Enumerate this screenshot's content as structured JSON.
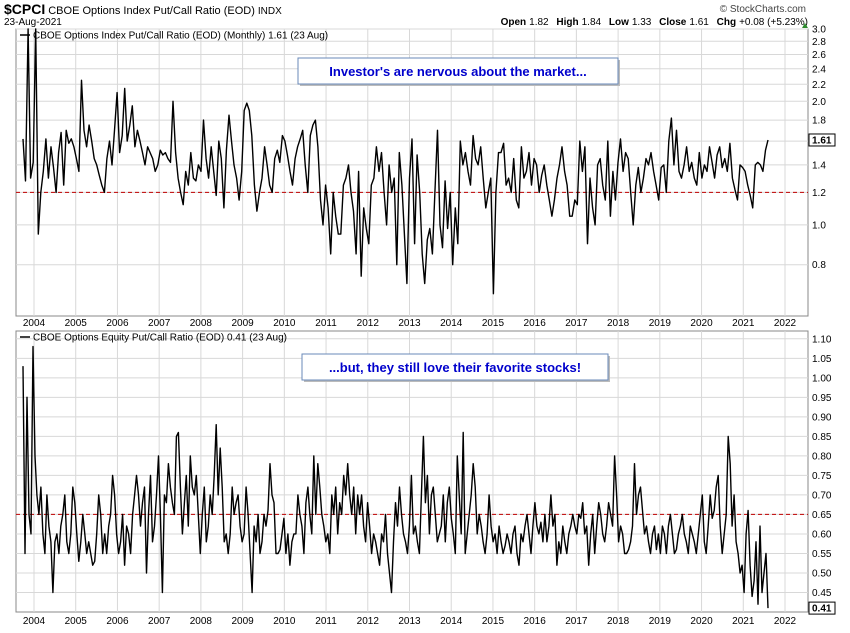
{
  "header": {
    "symbol": "$CPCI",
    "description": "CBOE Options Index Put/Call Ratio (EOD)",
    "exchange": "INDX",
    "date": "23-Aug-2021",
    "brand": "© StockCharts.com",
    "open_label": "Open",
    "open": "1.82",
    "high_label": "High",
    "high": "1.84",
    "low_label": "Low",
    "low": "1.33",
    "close_label": "Close",
    "close": "1.61",
    "chg_label": "Chg",
    "chg": "+0.08 (+5.23%)",
    "up_arrow_color": "#2e8b2e"
  },
  "chart_data": [
    {
      "type": "line",
      "title": "CBOE Options Index Put/Call Ratio (EOD) (Monthly) 1.61 (23 Aug)",
      "annotation": "Investor's are nervous about the market...",
      "scale": "log",
      "ylim": [
        0.6,
        3.0
      ],
      "y_ticks": [
        0.8,
        1.0,
        1.2,
        1.4,
        1.6,
        1.8,
        2.0,
        2.2,
        2.4,
        2.6,
        2.8,
        3.0
      ],
      "reference_line": 1.2,
      "last_value_label": "1.61",
      "x_ticks": [
        "2004",
        "2005",
        "2006",
        "2007",
        "2008",
        "2009",
        "2010",
        "2011",
        "2012",
        "2013",
        "2014",
        "2015",
        "2016",
        "2017",
        "2018",
        "2019",
        "2020",
        "2021",
        "2022"
      ],
      "series": [
        {
          "values": [
            1.62,
            1.28,
            3.0,
            1.3,
            1.42,
            3.0,
            0.95,
            1.2,
            1.35,
            1.62,
            1.3,
            1.55,
            1.38,
            1.2,
            1.5,
            1.68,
            1.25,
            1.7,
            1.58,
            1.62,
            1.55,
            1.45,
            1.35,
            2.25,
            1.7,
            1.55,
            1.75,
            1.6,
            1.45,
            1.4,
            1.32,
            1.25,
            1.2,
            1.45,
            1.6,
            1.4,
            1.7,
            2.1,
            1.5,
            1.65,
            2.15,
            1.6,
            1.75,
            1.95,
            1.55,
            1.7,
            1.6,
            1.5,
            1.4,
            1.55,
            1.5,
            1.45,
            1.35,
            1.4,
            1.52,
            1.48,
            1.5,
            1.45,
            1.42,
            2.0,
            1.5,
            1.3,
            1.2,
            1.12,
            1.35,
            1.25,
            1.5,
            1.3,
            1.28,
            1.4,
            1.35,
            1.8,
            1.45,
            1.3,
            1.55,
            1.35,
            1.18,
            1.6,
            1.45,
            1.1,
            1.52,
            1.85,
            1.6,
            1.4,
            1.3,
            1.15,
            1.35,
            1.9,
            1.98,
            1.9,
            1.65,
            1.25,
            1.08,
            1.2,
            1.3,
            1.55,
            1.4,
            1.25,
            1.2,
            1.45,
            1.52,
            1.42,
            1.65,
            1.6,
            1.48,
            1.35,
            1.25,
            1.45,
            1.55,
            1.62,
            1.7,
            1.4,
            1.2,
            1.65,
            1.75,
            1.8,
            1.55,
            1.15,
            1.0,
            1.25,
            1.1,
            0.85,
            1.2,
            1.05,
            0.95,
            0.95,
            1.25,
            1.3,
            1.4,
            1.2,
            1.08,
            0.85,
            1.35,
            0.75,
            1.1,
            0.98,
            0.9,
            1.25,
            1.3,
            1.55,
            1.35,
            1.5,
            1.2,
            1.0,
            1.4,
            1.2,
            1.3,
            0.8,
            1.5,
            1.25,
            0.95,
            0.72,
            1.3,
            1.62,
            0.9,
            1.48,
            1.2,
            0.85,
            0.72,
            0.92,
            0.98,
            0.85,
            1.2,
            1.7,
            1.0,
            0.88,
            1.28,
            0.98,
            1.2,
            0.8,
            1.1,
            0.9,
            1.6,
            1.4,
            1.5,
            1.35,
            1.25,
            1.65,
            1.45,
            1.4,
            1.55,
            1.3,
            1.1,
            1.2,
            1.3,
            0.68,
            1.2,
            1.5,
            1.5,
            1.58,
            1.25,
            1.3,
            1.2,
            1.45,
            1.15,
            1.1,
            1.55,
            1.3,
            1.35,
            1.5,
            1.25,
            1.45,
            1.4,
            1.2,
            1.32,
            1.4,
            1.25,
            1.15,
            1.05,
            1.15,
            1.3,
            1.4,
            1.55,
            1.35,
            1.25,
            1.05,
            1.05,
            1.15,
            1.12,
            1.6,
            1.35,
            1.55,
            0.9,
            1.3,
            1.1,
            1.0,
            1.4,
            1.45,
            1.25,
            1.15,
            1.6,
            1.05,
            1.35,
            1.15,
            1.42,
            1.62,
            1.35,
            1.5,
            1.45,
            1.2,
            1.0,
            1.25,
            1.38,
            1.2,
            1.3,
            1.45,
            1.4,
            1.5,
            1.35,
            1.25,
            1.15,
            1.38,
            1.4,
            1.2,
            1.6,
            1.82,
            1.4,
            1.7,
            1.35,
            1.3,
            1.4,
            1.55,
            1.35,
            1.42,
            1.3,
            1.25,
            1.5,
            1.3,
            1.4,
            1.35,
            1.55,
            1.42,
            1.3,
            1.48,
            1.55,
            1.38,
            1.45,
            1.35,
            1.58,
            1.3,
            1.22,
            1.15,
            1.4,
            1.38,
            1.35,
            1.25,
            1.18,
            1.1,
            1.4,
            1.42,
            1.4,
            1.35,
            1.52,
            1.61
          ]
        }
      ]
    },
    {
      "type": "line",
      "title": "CBOE Options Equity Put/Call Ratio (EOD) 0.41 (23 Aug)",
      "annotation": "...but, they still love their favorite stocks!",
      "scale": "linear",
      "ylim": [
        0.4,
        1.12
      ],
      "y_ticks": [
        0.45,
        0.5,
        0.55,
        0.6,
        0.65,
        0.7,
        0.75,
        0.8,
        0.85,
        0.9,
        0.95,
        1.0,
        1.05,
        1.1
      ],
      "reference_line": 0.65,
      "last_value_label": "0.41",
      "x_ticks": [
        "2004",
        "2005",
        "2006",
        "2007",
        "2008",
        "2009",
        "2010",
        "2011",
        "2012",
        "2013",
        "2014",
        "2015",
        "2016",
        "2017",
        "2018",
        "2019",
        "2020",
        "2021",
        "2022"
      ],
      "series": [
        {
          "values": [
            1.03,
            0.55,
            0.95,
            0.65,
            0.6,
            1.08,
            0.8,
            0.7,
            0.65,
            0.72,
            0.6,
            0.55,
            0.7,
            0.62,
            0.58,
            0.45,
            0.58,
            0.6,
            0.55,
            0.62,
            0.65,
            0.7,
            0.58,
            0.55,
            0.6,
            0.72,
            0.68,
            0.6,
            0.53,
            0.58,
            0.65,
            0.6,
            0.55,
            0.58,
            0.55,
            0.52,
            0.53,
            0.6,
            0.7,
            0.65,
            0.55,
            0.6,
            0.55,
            0.62,
            0.65,
            0.75,
            0.7,
            0.6,
            0.55,
            0.58,
            0.65,
            0.52,
            0.62,
            0.6,
            0.55,
            0.65,
            0.7,
            0.75,
            0.7,
            0.62,
            0.68,
            0.72,
            0.5,
            0.65,
            0.75,
            0.58,
            0.62,
            0.7,
            0.8,
            0.65,
            0.45,
            0.7,
            0.68,
            0.78,
            0.72,
            0.68,
            0.65,
            0.85,
            0.86,
            0.72,
            0.6,
            0.68,
            0.75,
            0.62,
            0.8,
            0.72,
            0.7,
            0.75,
            0.65,
            0.55,
            0.65,
            0.72,
            0.58,
            0.62,
            0.7,
            0.65,
            0.75,
            0.88,
            0.7,
            0.82,
            0.72,
            0.58,
            0.6,
            0.55,
            0.6,
            0.72,
            0.65,
            0.68,
            0.7,
            0.62,
            0.58,
            0.6,
            0.72,
            0.65,
            0.55,
            0.45,
            0.62,
            0.58,
            0.65,
            0.55,
            0.58,
            0.65,
            0.62,
            0.66,
            0.78,
            0.7,
            0.68,
            0.55,
            0.55,
            0.56,
            0.6,
            0.64,
            0.55,
            0.6,
            0.52,
            0.58,
            0.6,
            0.6,
            0.7,
            0.65,
            0.62,
            0.55,
            0.68,
            0.72,
            0.65,
            0.6,
            0.8,
            0.65,
            0.78,
            0.72,
            0.65,
            0.62,
            0.58,
            0.6,
            0.55,
            0.7,
            0.65,
            0.72,
            0.6,
            0.68,
            0.65,
            0.75,
            0.7,
            0.78,
            0.7,
            0.65,
            0.72,
            0.6,
            0.7,
            0.65,
            0.7,
            0.62,
            0.58,
            0.68,
            0.62,
            0.55,
            0.6,
            0.58,
            0.55,
            0.52,
            0.6,
            0.58,
            0.65,
            0.55,
            0.5,
            0.45,
            0.58,
            0.68,
            0.62,
            0.72,
            0.65,
            0.6,
            0.58,
            0.55,
            0.62,
            0.75,
            0.6,
            0.62,
            0.58,
            0.55,
            0.7,
            0.85,
            0.68,
            0.75,
            0.6,
            0.7,
            0.72,
            0.65,
            0.58,
            0.6,
            0.62,
            0.7,
            0.58,
            0.68,
            0.72,
            0.64,
            0.6,
            0.55,
            0.8,
            0.7,
            0.6,
            0.86,
            0.55,
            0.6,
            0.65,
            0.7,
            0.78,
            0.72,
            0.6,
            0.65,
            0.62,
            0.58,
            0.55,
            0.6,
            0.7,
            0.62,
            0.58,
            0.6,
            0.55,
            0.62,
            0.58,
            0.55,
            0.57,
            0.6,
            0.58,
            0.55,
            0.6,
            0.62,
            0.55,
            0.52,
            0.6,
            0.58,
            0.62,
            0.65,
            0.6,
            0.55,
            0.62,
            0.68,
            0.62,
            0.6,
            0.63,
            0.58,
            0.65,
            0.58,
            0.62,
            0.7,
            0.62,
            0.65,
            0.52,
            0.58,
            0.55,
            0.62,
            0.58,
            0.55,
            0.6,
            0.62,
            0.65,
            0.62,
            0.6,
            0.65,
            0.64,
            0.68,
            0.6,
            0.62,
            0.52,
            0.6,
            0.65,
            0.55,
            0.62,
            0.68,
            0.65,
            0.6,
            0.58,
            0.62,
            0.68,
            0.65,
            0.62,
            0.8,
            0.7,
            0.58,
            0.62,
            0.6,
            0.55,
            0.55,
            0.56,
            0.58,
            0.62,
            0.78,
            0.65,
            0.7,
            0.72,
            0.66,
            0.6,
            0.62,
            0.58,
            0.55,
            0.6,
            0.62,
            0.56,
            0.6,
            0.55,
            0.62,
            0.6,
            0.55,
            0.62,
            0.65,
            0.6,
            0.55,
            0.56,
            0.6,
            0.62,
            0.65,
            0.6,
            0.58,
            0.55,
            0.62,
            0.6,
            0.58,
            0.55,
            0.6,
            0.65,
            0.7,
            0.58,
            0.55,
            0.62,
            0.7,
            0.64,
            0.66,
            0.72,
            0.75,
            0.62,
            0.55,
            0.6,
            0.65,
            0.85,
            0.78,
            0.62,
            0.7,
            0.58,
            0.55,
            0.5,
            0.52,
            0.45,
            0.6,
            0.66,
            0.52,
            0.44,
            0.48,
            0.58,
            0.42,
            0.62,
            0.45,
            0.5,
            0.55,
            0.41
          ]
        }
      ]
    }
  ],
  "colors": {
    "line": "#000000",
    "reference": "#c00000",
    "grid": "#d8d8d8",
    "annotation_text": "#0000cc",
    "annotation_border": "#6a8ab8"
  }
}
